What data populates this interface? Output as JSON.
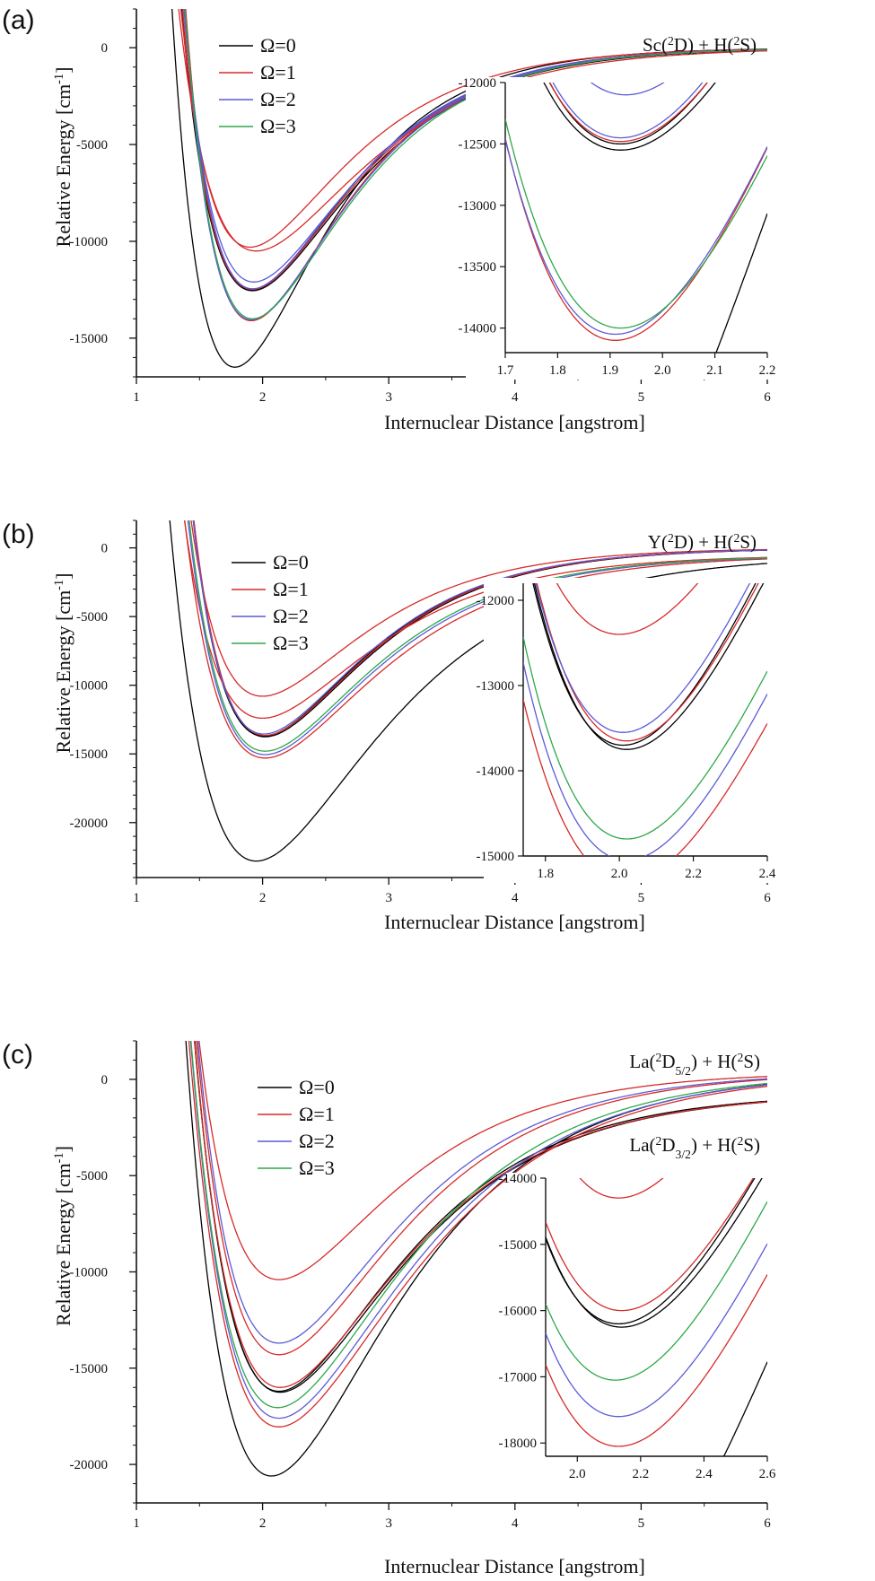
{
  "chart_data": [
    {
      "type": "line",
      "panel_label": "(a)",
      "ylabel": "Relative Energy [cm-1]",
      "xlabel": "Internuclear Distance [angstrom]",
      "xlim": [
        1,
        6
      ],
      "ylim": [
        -17000,
        2000
      ],
      "xticks": [
        1,
        2,
        3,
        4,
        5,
        6
      ],
      "yticks": [
        0,
        -5000,
        -10000,
        -15000
      ],
      "legend": [
        "Ω=0",
        "Ω=1",
        "Ω=2",
        "Ω=3"
      ],
      "legend_position": "top-left",
      "asymptote_labels": [
        {
          "text": "Sc(2D) + H(2S)",
          "energy": 0
        }
      ],
      "series": [
        {
          "omega": 0,
          "color": "#000000",
          "De": 16500,
          "re": 1.78,
          "a": 1.45,
          "asym": 0
        },
        {
          "omega": 0,
          "color": "#000000",
          "De": 12500,
          "re": 1.92,
          "a": 1.35,
          "asym": 0
        },
        {
          "omega": 0,
          "color": "#000000",
          "De": 12550,
          "re": 1.92,
          "a": 1.3,
          "asym": 0
        },
        {
          "omega": 1,
          "color": "#d62a2a",
          "De": 10300,
          "re": 1.9,
          "a": 1.35,
          "asym": 0
        },
        {
          "omega": 1,
          "color": "#d62a2a",
          "De": 10500,
          "re": 1.95,
          "a": 1.2,
          "asym": 0
        },
        {
          "omega": 1,
          "color": "#d62a2a",
          "De": 12480,
          "re": 1.92,
          "a": 1.32,
          "asym": 0
        },
        {
          "omega": 1,
          "color": "#d62a2a",
          "De": 14100,
          "re": 1.91,
          "a": 1.4,
          "asym": 0
        },
        {
          "omega": 2,
          "color": "#5b5bd6",
          "De": 12100,
          "re": 1.93,
          "a": 1.32,
          "asym": 0
        },
        {
          "omega": 2,
          "color": "#5b5bd6",
          "De": 12450,
          "re": 1.92,
          "a": 1.35,
          "asym": 0
        },
        {
          "omega": 2,
          "color": "#5b5bd6",
          "De": 14050,
          "re": 1.91,
          "a": 1.38,
          "asym": 0
        },
        {
          "omega": 3,
          "color": "#2ea84a",
          "De": 14000,
          "re": 1.92,
          "a": 1.36,
          "asym": 0
        }
      ],
      "inset": {
        "xlim": [
          1.7,
          2.2
        ],
        "ylim": [
          -14200,
          -12000
        ],
        "xticks": [
          1.7,
          1.8,
          1.9,
          2.0,
          2.1,
          2.2
        ],
        "yticks": [
          -12000,
          -12500,
          -13000,
          -13500,
          -14000
        ]
      }
    },
    {
      "type": "line",
      "panel_label": "(b)",
      "ylabel": "Relative Energy [cm-1]",
      "xlabel": "Internuclear Distance [angstrom]",
      "xlim": [
        1,
        6
      ],
      "ylim": [
        -24000,
        2000
      ],
      "xticks": [
        1,
        2,
        3,
        4,
        5,
        6
      ],
      "yticks": [
        0,
        -5000,
        -10000,
        -15000,
        -20000
      ],
      "legend": [
        "Ω=0",
        "Ω=1",
        "Ω=2",
        "Ω=3"
      ],
      "legend_position": "top-left",
      "asymptote_labels": [
        {
          "text": "Y(2D) + H(2S)",
          "energy": 0
        }
      ],
      "series": [
        {
          "omega": 0,
          "color": "#000000",
          "De": 22300,
          "re": 1.95,
          "a": 1.05,
          "asym": -500
        },
        {
          "omega": 0,
          "color": "#000000",
          "De": 13700,
          "re": 2.01,
          "a": 1.3,
          "asym": 0
        },
        {
          "omega": 0,
          "color": "#000000",
          "De": 13750,
          "re": 2.02,
          "a": 1.28,
          "asym": 0
        },
        {
          "omega": 1,
          "color": "#d62a2a",
          "De": 10800,
          "re": 2.0,
          "a": 1.3,
          "asym": 0
        },
        {
          "omega": 1,
          "color": "#d62a2a",
          "De": 11900,
          "re": 2.0,
          "a": 1.2,
          "asym": -500
        },
        {
          "omega": 1,
          "color": "#d62a2a",
          "De": 13650,
          "re": 2.02,
          "a": 1.29,
          "asym": 0
        },
        {
          "omega": 1,
          "color": "#d62a2a",
          "De": 14800,
          "re": 2.02,
          "a": 1.15,
          "asym": -500
        },
        {
          "omega": 2,
          "color": "#5b5bd6",
          "De": 13550,
          "re": 2.01,
          "a": 1.3,
          "asym": 0
        },
        {
          "omega": 2,
          "color": "#5b5bd6",
          "De": 14550,
          "re": 2.02,
          "a": 1.2,
          "asym": -500
        },
        {
          "omega": 3,
          "color": "#2ea84a",
          "De": 14300,
          "re": 2.02,
          "a": 1.22,
          "asym": -500
        }
      ],
      "inset": {
        "xlim": [
          1.74,
          2.4
        ],
        "ylim": [
          -15000,
          -11800
        ],
        "xticks": [
          1.8,
          2.0,
          2.2,
          2.4
        ],
        "yticks": [
          -12000,
          -13000,
          -14000,
          -15000
        ]
      }
    },
    {
      "type": "line",
      "panel_label": "(c)",
      "ylabel": "Relative Energy [cm-1]",
      "xlabel": "Internuclear Distance [angstrom]",
      "xlim": [
        1,
        6
      ],
      "ylim": [
        -22000,
        2000
      ],
      "xticks": [
        1,
        2,
        3,
        4,
        5,
        6
      ],
      "yticks": [
        0,
        -5000,
        -10000,
        -15000,
        -20000
      ],
      "legend": [
        "Ω=0",
        "Ω=1",
        "Ω=2",
        "Ω=3"
      ],
      "legend_position": "top-left",
      "asymptote_labels": [
        {
          "text": "La(2D5/2) + H(2S)",
          "energy": 400
        },
        {
          "text": "La(2D3/2) + H(2S)",
          "energy": -700
        }
      ],
      "series": [
        {
          "omega": 0,
          "color": "#000000",
          "De": 21000,
          "re": 2.07,
          "a": 1.05,
          "asym": 400
        },
        {
          "omega": 0,
          "color": "#000000",
          "De": 15500,
          "re": 2.13,
          "a": 1.1,
          "asym": -700
        },
        {
          "omega": 0,
          "color": "#000000",
          "De": 15550,
          "re": 2.14,
          "a": 1.08,
          "asym": -700
        },
        {
          "omega": 1,
          "color": "#d62a2a",
          "De": 10800,
          "re": 2.13,
          "a": 1.15,
          "asym": 400
        },
        {
          "omega": 1,
          "color": "#d62a2a",
          "De": 14700,
          "re": 2.13,
          "a": 1.1,
          "asym": 400
        },
        {
          "omega": 1,
          "color": "#d62a2a",
          "De": 15300,
          "re": 2.14,
          "a": 1.08,
          "asym": -700
        },
        {
          "omega": 1,
          "color": "#d62a2a",
          "De": 18450,
          "re": 2.13,
          "a": 1.0,
          "asym": 400
        },
        {
          "omega": 2,
          "color": "#5b5bd6",
          "De": 14100,
          "re": 2.13,
          "a": 1.12,
          "asym": 400
        },
        {
          "omega": 2,
          "color": "#5b5bd6",
          "De": 18000,
          "re": 2.13,
          "a": 1.02,
          "asym": 400
        },
        {
          "omega": 3,
          "color": "#2ea84a",
          "De": 17450,
          "re": 2.12,
          "a": 1.04,
          "asym": 400
        }
      ],
      "inset": {
        "xlim": [
          1.9,
          2.6
        ],
        "ylim": [
          -18200,
          -14000
        ],
        "xticks": [
          2.0,
          2.2,
          2.4,
          2.6
        ],
        "yticks": [
          -14000,
          -15000,
          -16000,
          -17000,
          -18000
        ]
      }
    }
  ]
}
